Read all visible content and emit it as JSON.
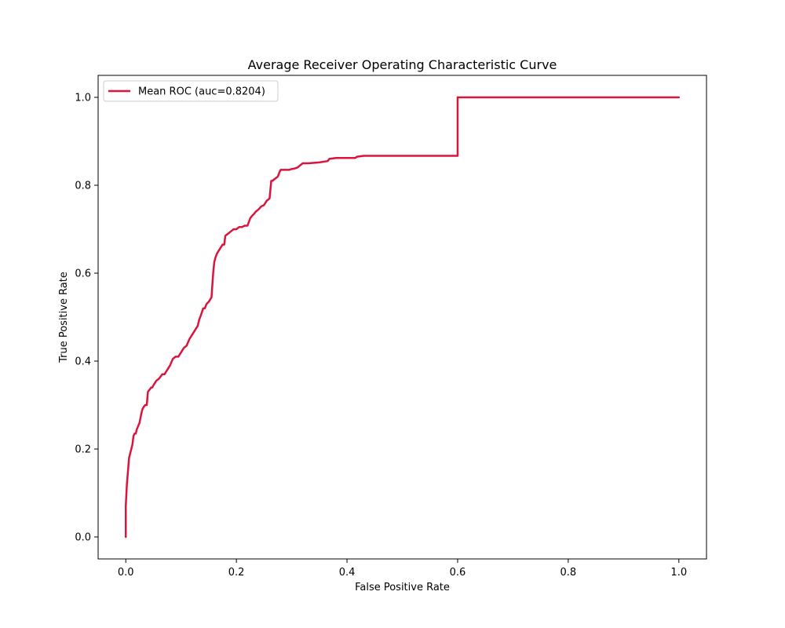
{
  "chart_data": {
    "type": "line",
    "title": "Average Receiver Operating Characteristic Curve",
    "xlabel": "False Positive Rate",
    "ylabel": "True Positive Rate",
    "xlim": [
      -0.05,
      1.05
    ],
    "ylim": [
      -0.05,
      1.05
    ],
    "x_ticks": [
      0.0,
      0.2,
      0.4,
      0.6,
      0.8,
      1.0
    ],
    "x_tick_labels": [
      "0.0",
      "0.2",
      "0.4",
      "0.6",
      "0.8",
      "1.0"
    ],
    "y_ticks": [
      0.0,
      0.2,
      0.4,
      0.6,
      0.8,
      1.0
    ],
    "y_tick_labels": [
      "0.0",
      "0.2",
      "0.4",
      "0.6",
      "0.8",
      "1.0"
    ],
    "grid": false,
    "legend_position": "upper-left",
    "series": [
      {
        "name": "Mean ROC (auc=0.8204)",
        "color": "#dc143c",
        "x": [
          0.0,
          0.0,
          0.002,
          0.004,
          0.006,
          0.008,
          0.01,
          0.012,
          0.014,
          0.016,
          0.018,
          0.02,
          0.025,
          0.028,
          0.03,
          0.032,
          0.035,
          0.038,
          0.04,
          0.043,
          0.046,
          0.048,
          0.05,
          0.055,
          0.06,
          0.063,
          0.066,
          0.07,
          0.075,
          0.08,
          0.085,
          0.09,
          0.095,
          0.1,
          0.105,
          0.11,
          0.115,
          0.12,
          0.125,
          0.13,
          0.133,
          0.136,
          0.14,
          0.143,
          0.146,
          0.15,
          0.155,
          0.158,
          0.16,
          0.162,
          0.165,
          0.17,
          0.175,
          0.178,
          0.18,
          0.185,
          0.19,
          0.195,
          0.2,
          0.205,
          0.21,
          0.215,
          0.22,
          0.225,
          0.228,
          0.232,
          0.235,
          0.24,
          0.245,
          0.25,
          0.255,
          0.26,
          0.263,
          0.265,
          0.27,
          0.275,
          0.278,
          0.28,
          0.285,
          0.29,
          0.295,
          0.3,
          0.305,
          0.31,
          0.315,
          0.318,
          0.32,
          0.325,
          0.33,
          0.35,
          0.365,
          0.368,
          0.38,
          0.4,
          0.415,
          0.418,
          0.43,
          0.5,
          0.6,
          0.6,
          1.0
        ],
        "y": [
          0.0,
          0.07,
          0.12,
          0.15,
          0.18,
          0.19,
          0.2,
          0.21,
          0.23,
          0.235,
          0.235,
          0.245,
          0.26,
          0.28,
          0.29,
          0.295,
          0.3,
          0.3,
          0.33,
          0.335,
          0.34,
          0.34,
          0.345,
          0.355,
          0.36,
          0.365,
          0.37,
          0.37,
          0.38,
          0.39,
          0.405,
          0.41,
          0.41,
          0.42,
          0.43,
          0.435,
          0.45,
          0.46,
          0.47,
          0.48,
          0.495,
          0.505,
          0.52,
          0.52,
          0.53,
          0.535,
          0.545,
          0.6,
          0.625,
          0.635,
          0.645,
          0.655,
          0.665,
          0.665,
          0.685,
          0.69,
          0.695,
          0.7,
          0.7,
          0.705,
          0.705,
          0.708,
          0.708,
          0.725,
          0.73,
          0.735,
          0.74,
          0.745,
          0.752,
          0.755,
          0.765,
          0.77,
          0.81,
          0.81,
          0.815,
          0.82,
          0.83,
          0.835,
          0.835,
          0.835,
          0.835,
          0.837,
          0.838,
          0.84,
          0.845,
          0.848,
          0.85,
          0.85,
          0.85,
          0.852,
          0.855,
          0.86,
          0.862,
          0.862,
          0.862,
          0.865,
          0.867,
          0.867,
          0.867,
          1.0,
          1.0
        ]
      }
    ]
  }
}
